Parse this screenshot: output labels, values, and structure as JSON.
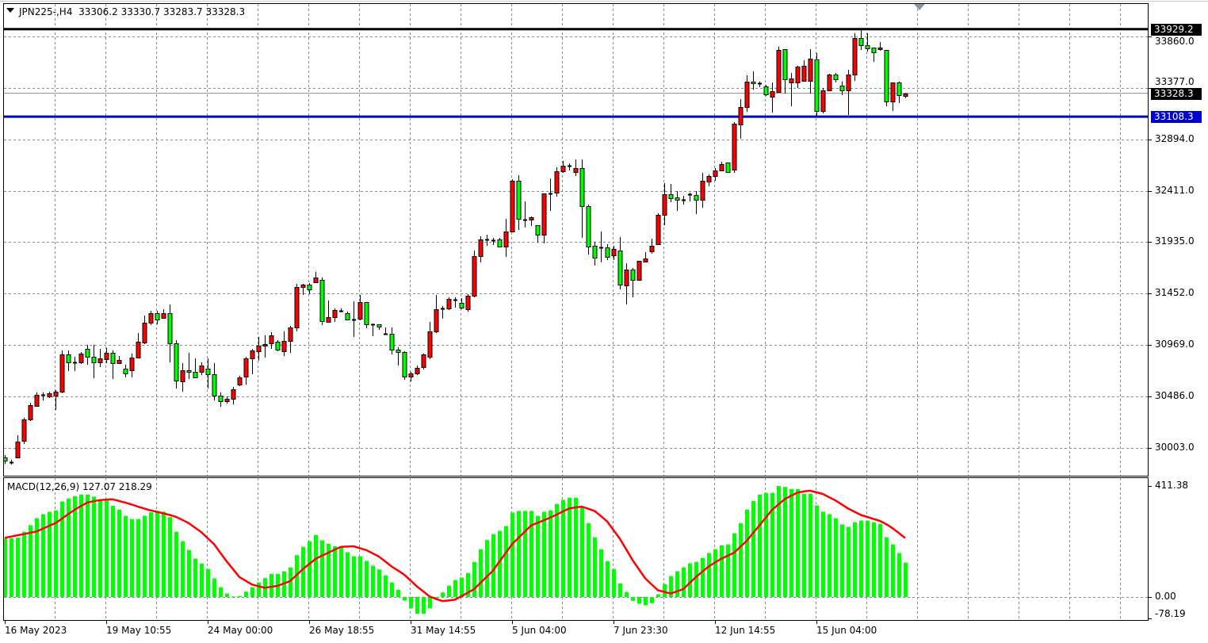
{
  "header": {
    "symbol": "JPN225-,H4",
    "open": "33306.2",
    "high": "33330.7",
    "low": "33283.7",
    "close": "33328.3"
  },
  "price_axis": {
    "ticks": [
      "33860.0",
      "33377.0",
      "32894.0",
      "32411.0",
      "31935.0",
      "31452.0",
      "30969.0",
      "30486.0",
      "30003.0"
    ]
  },
  "lines": {
    "resistance": {
      "value": "33929.2",
      "color": "#000000"
    },
    "bid": {
      "value": "33328.3",
      "color": "#000000",
      "line_color": "#8a929a"
    },
    "support": {
      "value": "33108.3",
      "color": "#0000cc"
    }
  },
  "time_axis": [
    "16 May 2023",
    "19 May 10:55",
    "24 May 00:00",
    "26 May 18:55",
    "31 May 14:55",
    "5 Jun 04:00",
    "7 Jun 23:30",
    "12 Jun 14:55",
    "15 Jun 04:00"
  ],
  "macd": {
    "label": "MACD(12,26,9)",
    "main": "127.07",
    "signal": "218.29",
    "axis": [
      "411.38",
      "0.00",
      "-78.19"
    ],
    "histogram_color": "#00ff00",
    "signal_color": "#ff0000"
  },
  "chart_data": [
    {
      "type": "candlestick",
      "title": "JPN225-,H4",
      "timeframe": "H4",
      "up_color": "#ff0000",
      "down_color": "#00ff00",
      "ylim": [
        29790,
        34230
      ],
      "grid": true,
      "x_tick_labels": [
        "16 May 2023",
        "19 May 10:55",
        "24 May 00:00",
        "26 May 18:55",
        "31 May 14:55",
        "5 Jun 04:00",
        "7 Jun 23:30",
        "12 Jun 14:55",
        "15 Jun 04:00"
      ],
      "ohlc": [
        [
          29914,
          29936,
          29854,
          29884
        ],
        [
          29869,
          29892,
          29847,
          29869
        ],
        [
          29914,
          30122,
          29906,
          30063
        ],
        [
          30070,
          30286,
          30040,
          30271
        ],
        [
          30271,
          30427,
          30256,
          30404
        ],
        [
          30397,
          30523,
          30389,
          30501
        ],
        [
          30501,
          30523,
          30449,
          30501
        ],
        [
          30486,
          30531,
          30471,
          30516
        ],
        [
          30494,
          30546,
          30360,
          30531
        ],
        [
          30531,
          30917,
          30516,
          30880
        ],
        [
          30880,
          30917,
          30724,
          30806
        ],
        [
          30806,
          30858,
          30724,
          30806
        ],
        [
          30806,
          30902,
          30791,
          30888
        ],
        [
          30932,
          30969,
          30783,
          30858
        ],
        [
          30858,
          30969,
          30657,
          30806
        ],
        [
          30806,
          30932,
          30761,
          30843
        ],
        [
          30835,
          30940,
          30798,
          30895
        ],
        [
          30895,
          30917,
          30650,
          30798
        ],
        [
          30798,
          30865,
          30791,
          30828
        ],
        [
          30746,
          30783,
          30665,
          30702
        ],
        [
          30731,
          30888,
          30665,
          30850
        ],
        [
          30850,
          31081,
          30843,
          30999
        ],
        [
          30992,
          31244,
          30977,
          31177
        ],
        [
          31177,
          31289,
          31155,
          31267
        ],
        [
          31267,
          31289,
          31162,
          31207
        ],
        [
          31222,
          31304,
          31215,
          31267
        ],
        [
          31267,
          31348,
          30806,
          30984
        ],
        [
          30984,
          31014,
          30560,
          30635
        ],
        [
          30627,
          30798,
          30531,
          30731
        ],
        [
          30731,
          30895,
          30650,
          30717
        ],
        [
          30717,
          30843,
          30657,
          30665
        ],
        [
          30717,
          30806,
          30687,
          30776
        ],
        [
          30746,
          30843,
          30560,
          30694
        ],
        [
          30694,
          30798,
          30449,
          30494
        ],
        [
          30494,
          30523,
          30389,
          30441
        ],
        [
          30441,
          30486,
          30419,
          30464
        ],
        [
          30464,
          30575,
          30412,
          30553
        ],
        [
          30597,
          30680,
          30583,
          30665
        ],
        [
          30672,
          30858,
          30597,
          30843
        ],
        [
          30843,
          30932,
          30694,
          30917
        ],
        [
          30910,
          31044,
          30821,
          30962
        ],
        [
          30962,
          31058,
          30850,
          30977
        ],
        [
          30984,
          31088,
          30932,
          31058
        ],
        [
          30999,
          31014,
          30910,
          30925
        ],
        [
          30910,
          31096,
          30865,
          31006
        ],
        [
          31006,
          31148,
          30895,
          31133
        ],
        [
          31133,
          31541,
          31096,
          31512
        ],
        [
          31512,
          31541,
          31437,
          31534
        ],
        [
          31534,
          31549,
          31445,
          31489
        ],
        [
          31556,
          31653,
          31549,
          31601
        ],
        [
          31579,
          31601,
          31155,
          31192
        ],
        [
          31185,
          31385,
          31177,
          31229
        ],
        [
          31229,
          31311,
          31185,
          31296
        ],
        [
          31289,
          31311,
          31274,
          31289
        ],
        [
          31267,
          31282,
          31200,
          31207
        ],
        [
          31207,
          31378,
          31044,
          31207
        ],
        [
          31215,
          31437,
          31200,
          31371
        ],
        [
          31371,
          31371,
          31125,
          31162
        ],
        [
          31162,
          31170,
          31051,
          31162
        ],
        [
          31162,
          31162,
          31110,
          31140
        ],
        [
          31073,
          31133,
          31066,
          31073
        ],
        [
          31073,
          31133,
          30880,
          30925
        ],
        [
          30925,
          30947,
          30776,
          30902
        ],
        [
          30902,
          30910,
          30642,
          30672
        ],
        [
          30672,
          30717,
          30627,
          30702
        ],
        [
          30702,
          30776,
          30687,
          30754
        ],
        [
          30761,
          30888,
          30739,
          30880
        ],
        [
          30858,
          31185,
          30835,
          31096
        ],
        [
          31096,
          31437,
          31081,
          31304
        ],
        [
          31311,
          31333,
          31215,
          31311
        ],
        [
          31311,
          31415,
          31296,
          31400
        ],
        [
          31393,
          31415,
          31318,
          31393
        ],
        [
          31363,
          31408,
          31304,
          31318
        ],
        [
          31304,
          31445,
          31281,
          31430
        ],
        [
          31430,
          31854,
          31415,
          31802
        ],
        [
          31802,
          31987,
          31743,
          31958
        ],
        [
          31958,
          32002,
          31898,
          31958
        ],
        [
          31950,
          31972,
          31906,
          31950
        ],
        [
          31958,
          31972,
          31883,
          31891
        ],
        [
          31891,
          32151,
          31794,
          32032
        ],
        [
          32032,
          32522,
          32032,
          32508
        ],
        [
          32508,
          32560,
          32047,
          32151
        ],
        [
          32144,
          32314,
          32069,
          32144
        ],
        [
          32144,
          32173,
          32084,
          32166
        ],
        [
          32091,
          32091,
          31928,
          32002
        ],
        [
          32002,
          32389,
          31920,
          32389
        ],
        [
          32389,
          32530,
          32225,
          32389
        ],
        [
          32396,
          32634,
          32359,
          32597
        ],
        [
          32597,
          32693,
          32582,
          32649
        ],
        [
          32649,
          32671,
          32604,
          32649
        ],
        [
          32589,
          32708,
          32552,
          32627
        ],
        [
          32627,
          32708,
          31972,
          32270
        ],
        [
          32270,
          32285,
          31816,
          31891
        ],
        [
          31898,
          31936,
          31712,
          31787
        ],
        [
          31883,
          32032,
          31743,
          31883
        ],
        [
          31883,
          31913,
          31764,
          31794
        ],
        [
          31809,
          31898,
          31764,
          31868
        ],
        [
          31854,
          31980,
          31489,
          31534
        ],
        [
          31527,
          31735,
          31348,
          31675
        ],
        [
          31675,
          31690,
          31415,
          31579
        ],
        [
          31579,
          31757,
          31579,
          31757
        ],
        [
          31750,
          31839,
          31743,
          31779
        ],
        [
          31846,
          31965,
          31824,
          31898
        ],
        [
          31913,
          32203,
          31906,
          32188
        ],
        [
          32188,
          32485,
          32091,
          32381
        ],
        [
          32381,
          32478,
          32307,
          32344
        ],
        [
          32352,
          32411,
          32225,
          32329
        ],
        [
          32329,
          32366,
          32285,
          32329
        ],
        [
          32381,
          32396,
          32314,
          32381
        ],
        [
          32374,
          32411,
          32195,
          32329
        ],
        [
          32329,
          32582,
          32255,
          32508
        ],
        [
          32500,
          32567,
          32456,
          32552
        ],
        [
          32552,
          32627,
          32508,
          32604
        ],
        [
          32604,
          32686,
          32597,
          32664
        ],
        [
          32679,
          32679,
          32582,
          32589
        ],
        [
          32612,
          33058,
          32582,
          33043
        ],
        [
          33035,
          33273,
          32902,
          33199
        ],
        [
          33199,
          33496,
          33154,
          33437
        ],
        [
          33437,
          33533,
          33362,
          33422
        ],
        [
          33422,
          33437,
          33385,
          33422
        ],
        [
          33392,
          33407,
          33303,
          33318
        ],
        [
          33295,
          33429,
          33147,
          33347
        ],
        [
          33340,
          33764,
          33340,
          33734
        ],
        [
          33741,
          33741,
          33325,
          33459
        ],
        [
          33429,
          33518,
          33206,
          33466
        ],
        [
          33429,
          33585,
          33377,
          33578
        ],
        [
          33444,
          33637,
          33444,
          33585
        ],
        [
          33444,
          33741,
          33325,
          33652
        ],
        [
          33645,
          33704,
          33110,
          33162
        ],
        [
          33162,
          33377,
          33139,
          33355
        ],
        [
          33355,
          33511,
          33347,
          33503
        ],
        [
          33503,
          33518,
          33429,
          33459
        ],
        [
          33399,
          33437,
          33310,
          33355
        ],
        [
          33355,
          33548,
          33124,
          33503
        ],
        [
          33503,
          33890,
          33444,
          33845
        ],
        [
          33845,
          33929.2,
          33734,
          33779
        ],
        [
          33779,
          33890,
          33719,
          33749
        ],
        [
          33756,
          33756,
          33622,
          33712
        ],
        [
          33741,
          33808,
          33726,
          33756
        ],
        [
          33734,
          33734,
          33206,
          33251
        ],
        [
          33251,
          33429,
          33162,
          33429
        ],
        [
          33429,
          33437,
          33236,
          33310
        ],
        [
          33306.2,
          33330.7,
          33283.7,
          33328.3
        ]
      ]
    },
    {
      "type": "bar",
      "title": "MACD(12,26,9)",
      "ylim": [
        -78.19,
        411.38
      ],
      "series": [
        {
          "name": "MACD",
          "color": "#00ff00",
          "values": [
            216,
            218,
            220,
            242,
            266,
            292,
            307,
            316,
            321,
            354,
            365,
            374,
            380,
            380,
            372,
            361,
            358,
            338,
            324,
            301,
            289,
            289,
            301,
            314,
            316,
            316,
            296,
            242,
            207,
            174,
            142,
            124,
            104,
            69,
            36,
            13,
            2,
            4,
            20,
            36,
            54,
            70,
            86,
            86,
            95,
            110,
            155,
            186,
            207,
            230,
            210,
            197,
            188,
            184,
            166,
            151,
            151,
            134,
            116,
            102,
            80,
            54,
            27,
            -13,
            -42,
            -62,
            -62,
            -42,
            -5,
            17,
            42,
            63,
            72,
            89,
            130,
            177,
            211,
            233,
            245,
            263,
            313,
            319,
            319,
            319,
            301,
            316,
            321,
            345,
            360,
            368,
            368,
            333,
            274,
            221,
            177,
            133,
            104,
            51,
            19,
            -14,
            -25,
            -31,
            -23,
            10,
            48,
            77,
            95,
            110,
            125,
            130,
            145,
            163,
            177,
            192,
            195,
            236,
            274,
            324,
            356,
            380,
            386,
            386,
            411.38,
            408,
            400,
            400,
            383,
            383,
            339,
            316,
            307,
            292,
            269,
            260,
            277,
            283,
            283,
            277,
            271,
            221,
            195,
            163,
            127.07
          ]
        },
        {
          "name": "Signal",
          "color": "#ff0000",
          "values": [
            219,
            224,
            229,
            233,
            238,
            243,
            253,
            264,
            274,
            290,
            307,
            323,
            337,
            350,
            355,
            359,
            361,
            362,
            356,
            350,
            343,
            335,
            328,
            321,
            316,
            310,
            304,
            297,
            286,
            274,
            257,
            240,
            218,
            196,
            164,
            132,
            103,
            74,
            60,
            46,
            40,
            34,
            38,
            41,
            50,
            59,
            81,
            103,
            122,
            141,
            153,
            164,
            175,
            186,
            187,
            188,
            181,
            174,
            162,
            150,
            132,
            113,
            98,
            83,
            61,
            39,
            21,
            2,
            -7,
            -15,
            -13,
            -10,
            3,
            16,
            29,
            52,
            75,
            98,
            131,
            163,
            196,
            219,
            242,
            265,
            275,
            284,
            294,
            305,
            317,
            328,
            332,
            335,
            327,
            319,
            300,
            280,
            248,
            216,
            177,
            137,
            103,
            69,
            47,
            25,
            19,
            13,
            21,
            29,
            52,
            74,
            94,
            113,
            128,
            142,
            153,
            164,
            186,
            208,
            237,
            265,
            294,
            323,
            343,
            363,
            375,
            387,
            391,
            394,
            388,
            382,
            370,
            358,
            343,
            328,
            316,
            304,
            297,
            289,
            282,
            270,
            255,
            237,
            218.29
          ]
        }
      ]
    }
  ]
}
